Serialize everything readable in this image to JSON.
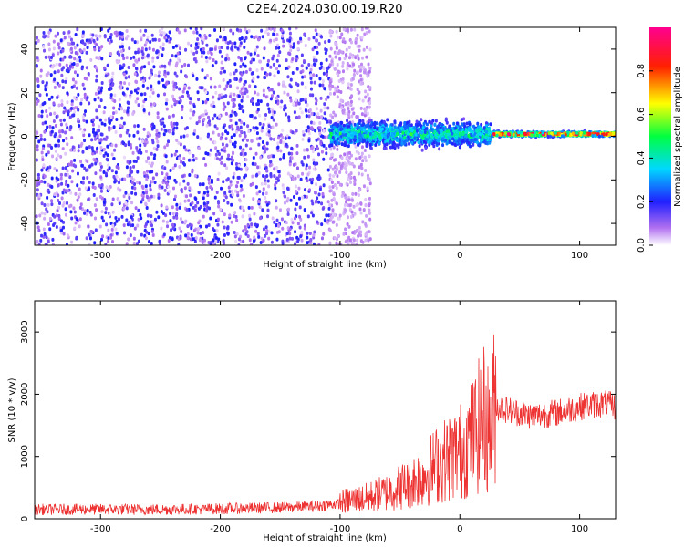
{
  "title": "C2E4.2024.030.00.19.R20",
  "chart_data": [
    {
      "type": "heatmap",
      "name": "spectrogram",
      "xlabel": "Height of straight line (km)",
      "ylabel": "Frequency (Hz)",
      "xlim": [
        -355,
        130
      ],
      "ylim": [
        -50,
        50
      ],
      "x_ticks": [
        -300,
        -200,
        -100,
        0,
        100
      ],
      "y_ticks": [
        -40,
        -20,
        0,
        20,
        40
      ],
      "grid": false,
      "colorbar": {
        "label": "Normalized spectral amplitude",
        "range": [
          0,
          1
        ],
        "ticks": [
          0.0,
          0.2,
          0.4,
          0.6,
          0.8
        ],
        "colors": [
          "#ffffff",
          "#8a2be2",
          "#0000ff",
          "#00ffff",
          "#00ff00",
          "#ffff00",
          "#ff0000",
          "#ff0090"
        ]
      },
      "regions": [
        {
          "x": [
            -355,
            -110
          ],
          "freq_spread": 50,
          "amplitude": 0.15,
          "note": "broadband noise"
        },
        {
          "x": [
            -110,
            25
          ],
          "freq_center": 1,
          "freq_spread": 8,
          "amplitude": 0.3
        },
        {
          "x": [
            25,
            130
          ],
          "freq_center": 1,
          "freq_spread": 1.5,
          "amplitude": 0.85
        }
      ]
    },
    {
      "type": "line",
      "name": "snr",
      "xlabel": "Height of straight line (km)",
      "ylabel": "SNR (10 * v/v)",
      "xlim": [
        -355,
        130
      ],
      "ylim": [
        0,
        3500
      ],
      "x_ticks": [
        -300,
        -200,
        -100,
        0,
        100
      ],
      "y_ticks": [
        0,
        1000,
        2000,
        3000
      ],
      "grid": false,
      "color": "#ee3333",
      "x": [
        -355,
        -300,
        -250,
        -200,
        -150,
        -120,
        -100,
        -80,
        -60,
        -40,
        -30,
        -20,
        -10,
        0,
        10,
        20,
        25,
        30,
        40,
        60,
        80,
        100,
        120,
        130
      ],
      "y": [
        150,
        150,
        150,
        160,
        180,
        200,
        250,
        300,
        400,
        550,
        650,
        800,
        900,
        1000,
        1200,
        1500,
        1300,
        1800,
        1750,
        1650,
        1700,
        1800,
        1850,
        1800
      ]
    }
  ]
}
